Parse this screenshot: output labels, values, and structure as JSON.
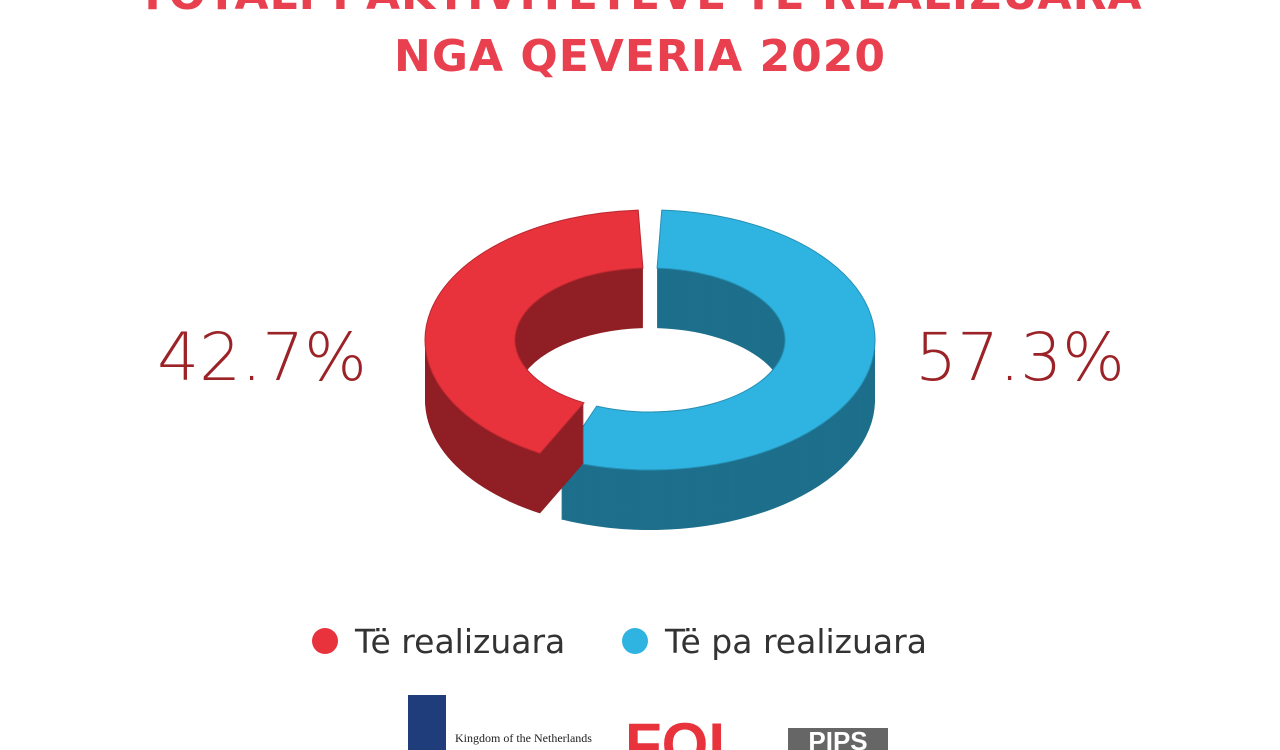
{
  "chart_data": {
    "type": "donut3d",
    "title": [
      "TOTALI I AKTIVITETEVE TË REALIZUARA",
      "NGA QEVERIA 2020"
    ],
    "categories": [
      "Të realizuara",
      "Të pa realizuara"
    ],
    "values": [
      42.7,
      57.3
    ],
    "value_labels": [
      "42.7%",
      "57.3%"
    ],
    "colors": [
      "#e8323c",
      "#2fb3e0"
    ],
    "label_color": "#9b2226"
  },
  "footer": {
    "logos": [
      "Kingdom of the Netherlands",
      "FOI",
      "PIPS"
    ]
  }
}
